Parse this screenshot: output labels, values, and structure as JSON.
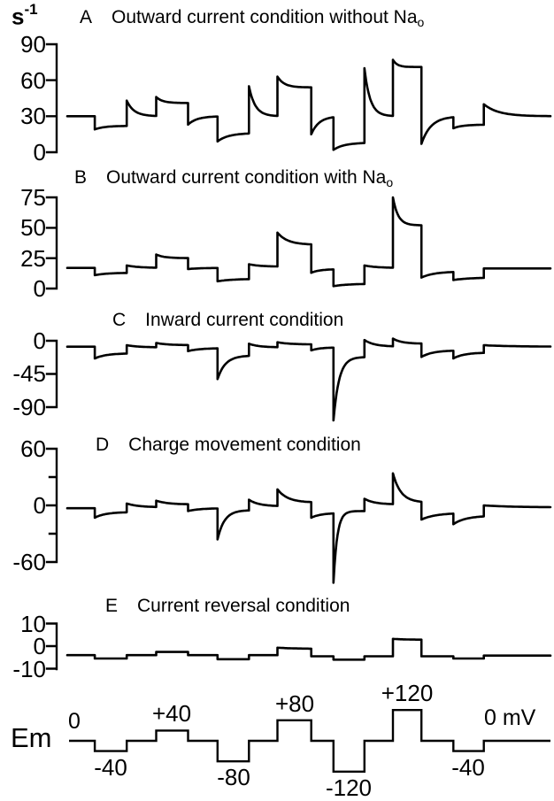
{
  "figure": {
    "unit_base": "s",
    "unit_exp": "-1",
    "ink_color": "#000000",
    "background": "#ffffff"
  },
  "chart_data": {
    "type": "line",
    "x_axis": {
      "label": "",
      "range": [
        0,
        1
      ],
      "grid": false
    },
    "panels": [
      {
        "id": "A",
        "title": "Outward current condition without Na",
        "title_sub": "o",
        "ylim": [
          0,
          90
        ],
        "yticks": [
          {
            "value": 90,
            "label": "90"
          },
          {
            "value": 60,
            "label": "60"
          },
          {
            "value": 30,
            "label": "30"
          },
          {
            "value": 0,
            "label": "0"
          }
        ],
        "minor_ticks": [],
        "baseline": 30,
        "end_value": 30,
        "responses": [
          {
            "pulse_mV": -40,
            "step": [
              19,
              22,
              0.3
            ],
            "ret": [
              43,
              30,
              0.25
            ]
          },
          {
            "pulse_mV": 40,
            "step": [
              46,
              41,
              0.2
            ],
            "ret": [
              23,
              30,
              0.3
            ]
          },
          {
            "pulse_mV": -80,
            "step": [
              9,
              16,
              0.35
            ],
            "ret": [
              55,
              30,
              0.22
            ]
          },
          {
            "pulse_mV": 80,
            "step": [
              63,
              54,
              0.2
            ],
            "ret": [
              15,
              30,
              0.35
            ]
          },
          {
            "pulse_mV": -120,
            "step": [
              2,
              8,
              0.35
            ],
            "ret": [
              70,
              30,
              0.2
            ]
          },
          {
            "pulse_mV": 120,
            "step": [
              77,
              71,
              0.15
            ],
            "ret": [
              7,
              30,
              0.3
            ]
          },
          {
            "pulse_mV": -40,
            "step": [
              20,
              23,
              0.3
            ],
            "ret": [
              40,
              30,
              0.22
            ]
          }
        ]
      },
      {
        "id": "B",
        "title": "Outward current condition with Na",
        "title_sub": "o",
        "ylim": [
          0,
          75
        ],
        "yticks": [
          {
            "value": 75,
            "label": "75"
          },
          {
            "value": 50,
            "label": "50"
          },
          {
            "value": 25,
            "label": "25"
          },
          {
            "value": 0,
            "label": "0"
          }
        ],
        "minor_ticks": [],
        "baseline": 17,
        "end_value": 16.5,
        "responses": [
          {
            "pulse_mV": -40,
            "step": [
              11,
              13,
              0.4
            ],
            "ret": [
              19,
              17,
              0.4
            ]
          },
          {
            "pulse_mV": 40,
            "step": [
              28,
              25,
              0.25
            ],
            "ret": [
              16,
              17,
              0.4
            ]
          },
          {
            "pulse_mV": -80,
            "step": [
              6,
              8,
              0.5
            ],
            "ret": [
              20,
              18,
              0.4
            ]
          },
          {
            "pulse_mV": 80,
            "step": [
              46,
              36,
              0.3
            ],
            "ret": [
              13,
              16,
              0.4
            ]
          },
          {
            "pulse_mV": -120,
            "step": [
              2,
              4,
              0.5
            ],
            "ret": [
              19,
              17,
              0.4
            ]
          },
          {
            "pulse_mV": 120,
            "step": [
              75,
              52,
              0.18
            ],
            "ret": [
              9,
              14,
              0.4
            ]
          },
          {
            "pulse_mV": -40,
            "step": [
              7,
              9,
              0.5
            ],
            "ret": [
              16.5,
              16.5,
              0.4
            ]
          }
        ]
      },
      {
        "id": "C",
        "title": "Inward current condition",
        "title_sub": "",
        "ylim": [
          -90,
          0
        ],
        "yticks": [
          {
            "value": 0,
            "label": "0"
          },
          {
            "value": -45,
            "label": "-45"
          },
          {
            "value": -90,
            "label": "-90"
          }
        ],
        "minor_ticks": [],
        "baseline": -8,
        "end_value": -8,
        "responses": [
          {
            "pulse_mV": -40,
            "step": [
              -24,
              -17,
              0.35
            ],
            "ret": [
              -6,
              -9,
              0.4
            ]
          },
          {
            "pulse_mV": 40,
            "step": [
              -3,
              -6,
              0.35
            ],
            "ret": [
              -14,
              -10,
              0.4
            ]
          },
          {
            "pulse_mV": -80,
            "step": [
              -52,
              -20,
              0.25
            ],
            "ret": [
              -4,
              -9,
              0.35
            ]
          },
          {
            "pulse_mV": 80,
            "step": [
              -2,
              -5,
              0.35
            ],
            "ret": [
              -13,
              -9,
              0.4
            ]
          },
          {
            "pulse_mV": -120,
            "step": [
              -108,
              -22,
              0.18
            ],
            "ret": [
              1,
              -8,
              0.35
            ]
          },
          {
            "pulse_mV": 120,
            "step": [
              3,
              -4,
              0.3
            ],
            "ret": [
              -22,
              -13,
              0.35
            ]
          },
          {
            "pulse_mV": -40,
            "step": [
              -24,
              -16,
              0.35
            ],
            "ret": [
              -6,
              -8,
              0.4
            ]
          }
        ]
      },
      {
        "id": "D",
        "title": "Charge movement  condition",
        "title_sub": "",
        "ylim": [
          -60,
          60
        ],
        "yticks": [
          {
            "value": 60,
            "label": "60"
          },
          {
            "value": 0,
            "label": "0"
          },
          {
            "value": -60,
            "label": "-60"
          }
        ],
        "minor_ticks": [
          30,
          -30
        ],
        "baseline": -3,
        "end_value": -2,
        "responses": [
          {
            "pulse_mV": -40,
            "step": [
              -13,
              -7,
              0.35
            ],
            "ret": [
              2,
              -2,
              0.4
            ]
          },
          {
            "pulse_mV": 40,
            "step": [
              5,
              1,
              0.35
            ],
            "ret": [
              -6,
              -3,
              0.4
            ]
          },
          {
            "pulse_mV": -80,
            "step": [
              -36,
              -5,
              0.22
            ],
            "ret": [
              6,
              -1,
              0.35
            ]
          },
          {
            "pulse_mV": 80,
            "step": [
              17,
              3,
              0.3
            ],
            "ret": [
              -13,
              -8,
              0.45
            ]
          },
          {
            "pulse_mV": -120,
            "step": [
              -82,
              -6,
              0.12
            ],
            "ret": [
              7,
              1,
              0.35
            ]
          },
          {
            "pulse_mV": 120,
            "step": [
              34,
              3,
              0.28
            ],
            "ret": [
              -15,
              -8,
              0.45
            ]
          },
          {
            "pulse_mV": -40,
            "step": [
              -20,
              -11,
              0.4
            ],
            "ret": [
              0,
              -2,
              0.4
            ]
          }
        ]
      },
      {
        "id": "E",
        "title": "Current reversal condition",
        "title_sub": "",
        "ylim": [
          -10,
          10
        ],
        "yticks": [
          {
            "value": 10,
            "label": "10"
          },
          {
            "value": 0,
            "label": "0"
          },
          {
            "value": -10,
            "label": "-10"
          }
        ],
        "minor_ticks": [],
        "baseline": -4,
        "end_value": -4.2,
        "responses": [
          {
            "pulse_mV": -40,
            "step": [
              -5.5,
              -5.5,
              0.5
            ],
            "ret": [
              -4,
              -4,
              0.5
            ]
          },
          {
            "pulse_mV": 40,
            "step": [
              -2.6,
              -2.6,
              0.5
            ],
            "ret": [
              -4,
              -4,
              0.5
            ]
          },
          {
            "pulse_mV": -80,
            "step": [
              -5.8,
              -5.8,
              0.5
            ],
            "ret": [
              -4,
              -4,
              0.5
            ]
          },
          {
            "pulse_mV": 80,
            "step": [
              -0.7,
              -1.2,
              0.5
            ],
            "ret": [
              -4.5,
              -4.5,
              0.5
            ]
          },
          {
            "pulse_mV": -120,
            "step": [
              -6,
              -6,
              0.5
            ],
            "ret": [
              -4.5,
              -4.5,
              0.5
            ]
          },
          {
            "pulse_mV": 120,
            "step": [
              3.2,
              2.8,
              0.5
            ],
            "ret": [
              -4.5,
              -4.5,
              0.5
            ]
          },
          {
            "pulse_mV": -40,
            "step": [
              -5.5,
              -5.5,
              0.5
            ],
            "ret": [
              -4.2,
              -4.2,
              0.5
            ]
          }
        ]
      }
    ],
    "protocol": {
      "label": "Em",
      "start_label": "0",
      "end_label": "0 mV",
      "baseline_mV": 0,
      "pulses": [
        {
          "mV": -40,
          "label": "-40",
          "label_pos": "below",
          "on": 0.057,
          "off": 0.123
        },
        {
          "mV": 40,
          "label": "+40",
          "label_pos": "above",
          "on": 0.184,
          "off": 0.25
        },
        {
          "mV": -80,
          "label": "-80",
          "label_pos": "below",
          "on": 0.311,
          "off": 0.376
        },
        {
          "mV": 80,
          "label": "+80",
          "label_pos": "above",
          "on": 0.435,
          "off": 0.505
        },
        {
          "mV": -120,
          "label": "-120",
          "label_pos": "below",
          "on": 0.551,
          "off": 0.615
        },
        {
          "mV": 120,
          "label": "+120",
          "label_pos": "above",
          "on": 0.674,
          "off": 0.733
        },
        {
          "mV": -40,
          "label": "-40",
          "label_pos": "below",
          "on": 0.799,
          "off": 0.862
        }
      ]
    }
  }
}
